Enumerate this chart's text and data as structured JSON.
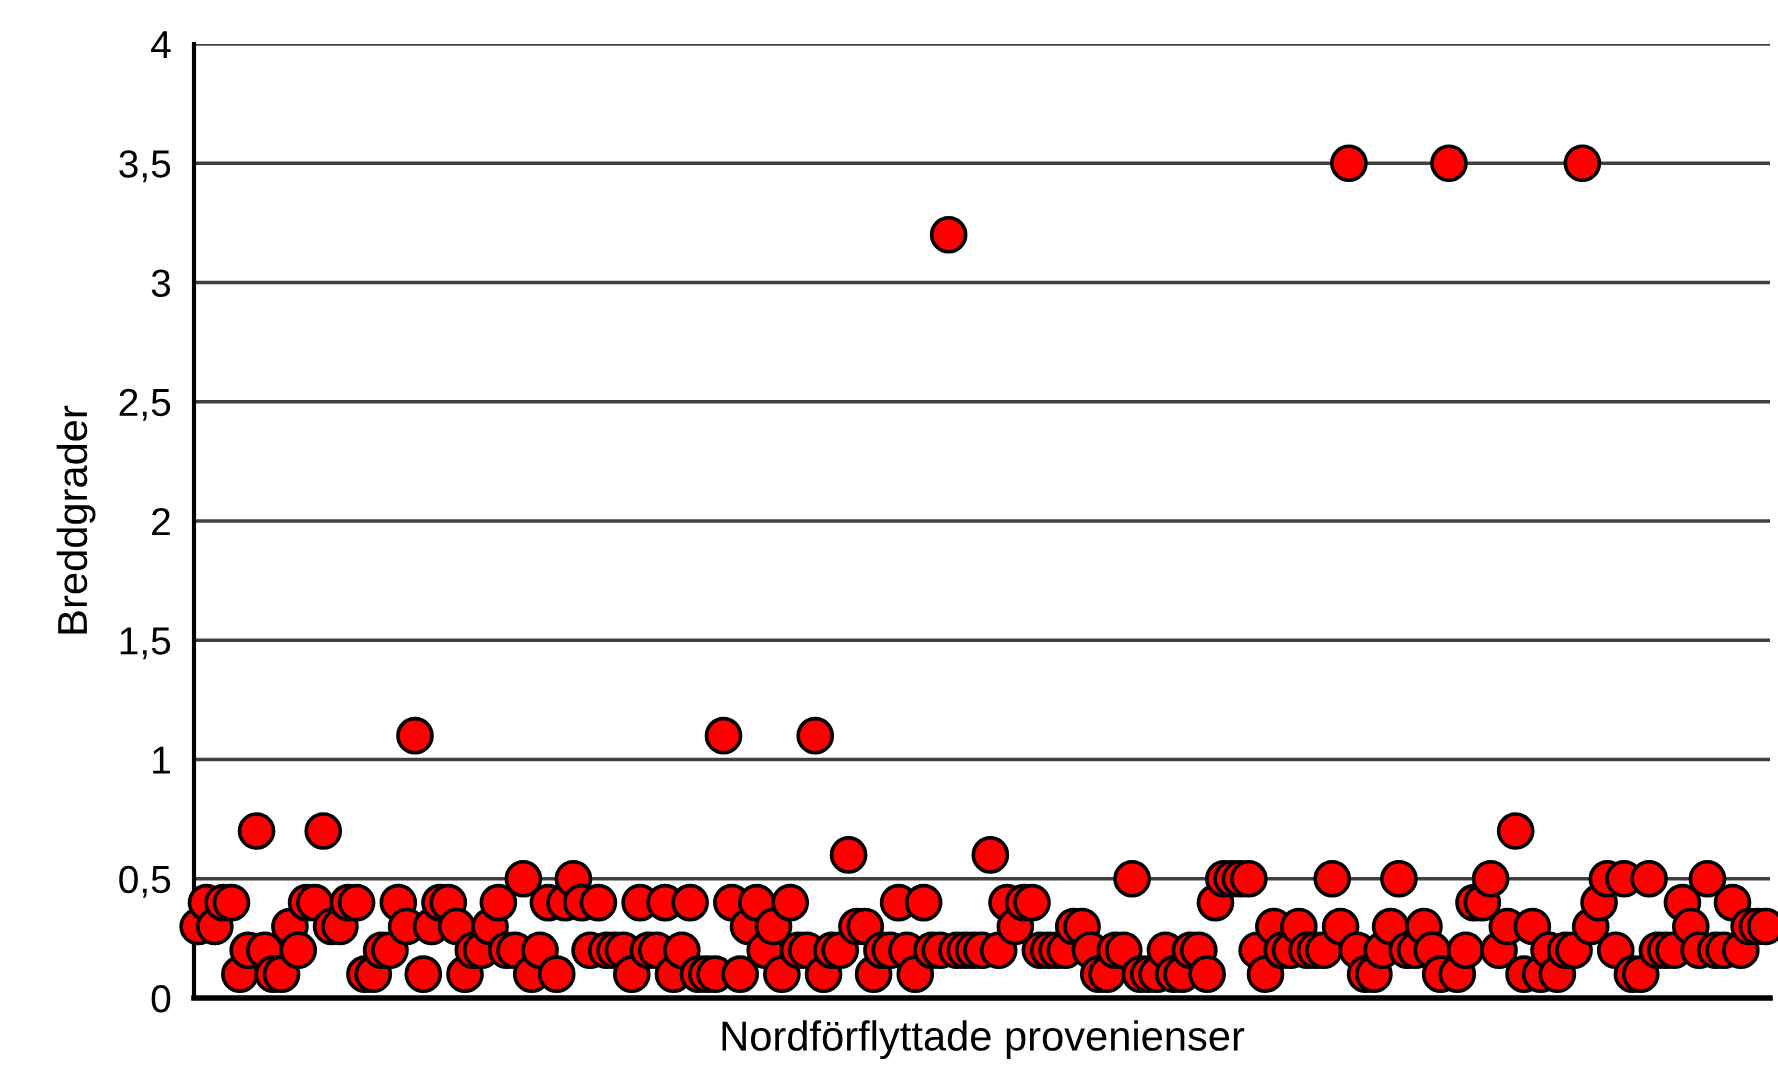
{
  "chart_data": {
    "type": "scatter",
    "xlabel": "Nordförflyttade provenienser",
    "ylabel": "Breddgrader",
    "categories": [
      null,
      null,
      null,
      null,
      null,
      null,
      null,
      null,
      null,
      null,
      null,
      null,
      null,
      null,
      null,
      null,
      null,
      null,
      null,
      null,
      null,
      null,
      null,
      null,
      null,
      null,
      null,
      null,
      null,
      null,
      null,
      null,
      null,
      null,
      null,
      null,
      null,
      null,
      null,
      null,
      null,
      null,
      null,
      null,
      null,
      null,
      null,
      null,
      null,
      null,
      null,
      null,
      null,
      null,
      null,
      null,
      null,
      null,
      null,
      null,
      null,
      null,
      null,
      null,
      null,
      null,
      null,
      null,
      null,
      null,
      null,
      null,
      null,
      null,
      null,
      null,
      null,
      null,
      null,
      null,
      null,
      null,
      null,
      null,
      null,
      null,
      null,
      null,
      null,
      null,
      null,
      null,
      null,
      null,
      null,
      null,
      null,
      null,
      null,
      null,
      null,
      null,
      null,
      null,
      null,
      null,
      null,
      null,
      null,
      null,
      null,
      null,
      null,
      null,
      null,
      null,
      null,
      null,
      null,
      null,
      null,
      null,
      null,
      null,
      null,
      null,
      null,
      null,
      null,
      null,
      null,
      null,
      null,
      null,
      null,
      null,
      null,
      null,
      null,
      null,
      null,
      null,
      null,
      null,
      null,
      null,
      null,
      null,
      null,
      null,
      null,
      null,
      null,
      null,
      null,
      null,
      null,
      null,
      null,
      null,
      null,
      null,
      null,
      null,
      null,
      null,
      null,
      null,
      null,
      null,
      null,
      null,
      null,
      null,
      null,
      null,
      null,
      null,
      null,
      null,
      null,
      null,
      null,
      null,
      null,
      null,
      null,
      null,
      null
    ],
    "ylim": [
      0,
      4
    ],
    "yticks": [
      0,
      {
        "value": 0.5,
        "label": "0,5"
      },
      1,
      {
        "value": 1.5,
        "label": "1,5"
      },
      2,
      {
        "value": 2.5,
        "label": "2,5"
      },
      3,
      {
        "value": 3.5,
        "label": "3,5"
      },
      4
    ],
    "tick_labels": "y",
    "grid": "y",
    "marker": "circle",
    "series": [
      {
        "color": "#ff0000",
        "values": [
          0.3,
          0.4,
          0.3,
          0.4,
          0.4,
          0.1,
          0.2,
          0.7,
          0.2,
          0.1,
          0.1,
          0.3,
          0.2,
          0.4,
          0.4,
          0.7,
          0.3,
          0.3,
          0.4,
          0.4,
          0.1,
          0.1,
          0.2,
          0.2,
          0.4,
          0.3,
          1.1,
          0.1,
          0.3,
          0.4,
          0.4,
          0.3,
          0.1,
          0.2,
          0.2,
          0.3,
          0.4,
          0.2,
          0.2,
          0.5,
          0.1,
          0.2,
          0.4,
          0.1,
          0.4,
          0.5,
          0.4,
          0.2,
          0.4,
          0.2,
          0.2,
          0.2,
          0.1,
          0.4,
          0.2,
          0.2,
          0.4,
          0.1,
          0.2,
          0.4,
          0.1,
          0.1,
          0.1,
          1.1,
          0.4,
          0.1,
          0.3,
          0.4,
          0.2,
          0.3,
          0.1,
          0.4,
          0.2,
          0.2,
          1.1,
          0.1,
          0.2,
          0.2,
          0.6,
          0.3,
          0.3,
          0.1,
          0.2,
          0.2,
          0.4,
          0.2,
          0.1,
          0.4,
          0.2,
          0.2,
          3.2,
          0.2,
          0.2,
          0.2,
          0.2,
          0.6,
          0.2,
          0.4,
          0.3,
          0.4,
          0.4,
          0.2,
          0.2,
          0.2,
          0.2,
          0.3,
          0.3,
          0.2,
          0.1,
          0.1,
          0.2,
          0.2,
          0.5,
          0.1,
          0.1,
          0.1,
          0.2,
          0.1,
          0.1,
          0.2,
          0.2,
          0.1,
          0.4,
          0.5,
          0.5,
          0.5,
          0.5,
          0.2,
          0.1,
          0.3,
          0.2,
          0.2,
          0.3,
          0.2,
          0.2,
          0.2,
          0.5,
          0.3,
          3.5,
          0.2,
          0.1,
          0.1,
          0.2,
          0.3,
          0.5,
          0.2,
          0.2,
          0.3,
          0.2,
          0.1,
          3.5,
          0.1,
          0.2,
          0.4,
          0.4,
          0.5,
          0.2,
          0.3,
          0.7,
          0.1,
          0.3,
          0.1,
          0.2,
          0.1,
          0.2,
          0.2,
          3.5,
          0.3,
          0.4,
          0.5,
          0.2,
          0.5,
          0.1,
          0.1,
          0.5,
          0.2,
          0.2,
          0.2,
          0.4,
          0.3,
          0.2,
          0.5,
          0.2,
          0.2,
          0.4,
          0.2,
          0.3,
          0.3,
          0.3
        ]
      }
    ]
  }
}
